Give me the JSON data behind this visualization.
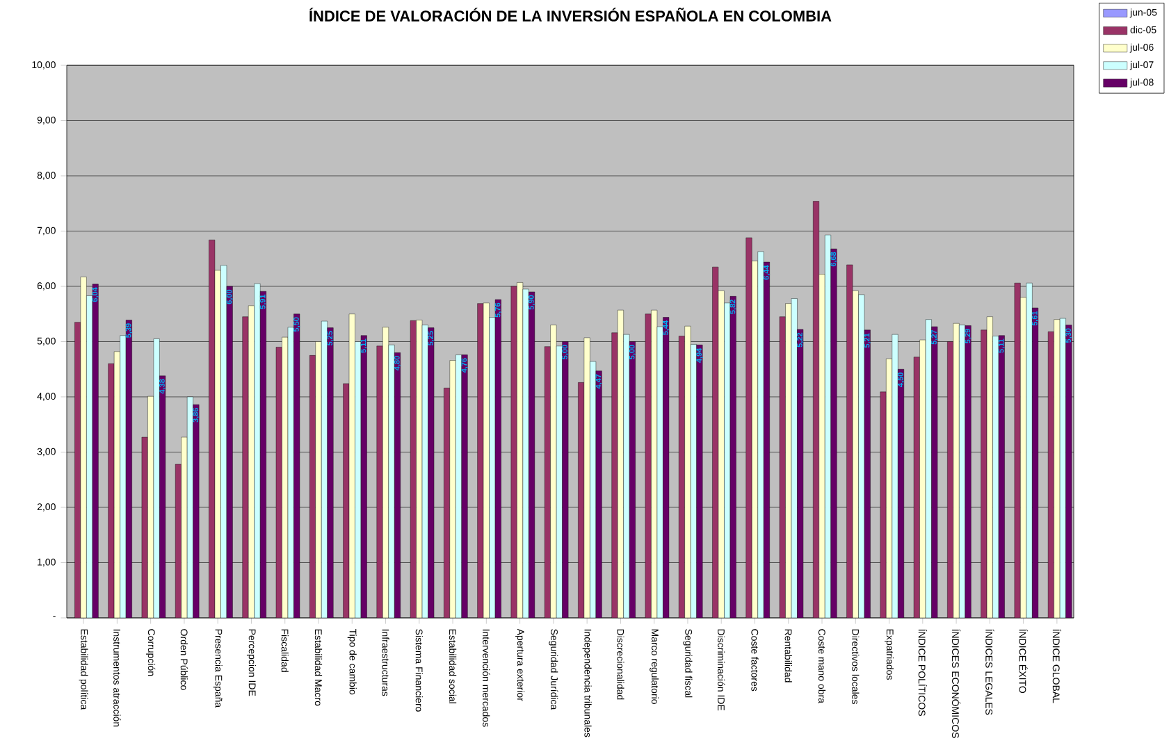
{
  "chart_data": {
    "type": "bar",
    "title": "ÍNDICE DE VALORACIÓN DE LA INVERSIÓN ESPAÑOLA EN COLOMBIA",
    "categories": [
      "Estabilidad política",
      "Instrumentos atracción",
      "Corrupción",
      "Orden Público",
      "Presencia España",
      "Percepcion IDE",
      "Fiscalidad",
      "Estabilidad Macro",
      "Tipo de cambio",
      "Infraestructuras",
      "Sistema Financiero",
      "Estabilidad social",
      "Intervención mercados",
      "Apertura exterior",
      "Seguridad Jurídica",
      "Independencia tribunales",
      "Discrecionalidad",
      "Marco regulatorio",
      "Seguridad fiscal",
      "Discriminación IDE",
      "Coste factores",
      "Rentabilidad",
      "Coste mano obra",
      "Directivos locales",
      "Expatriados",
      "ÍNDICE POLÍTICOS",
      "ÍNDICES ECONÓMICOS",
      "ÍNDICES LEGALES",
      "ÍNDICE ÉXITO",
      "ÍNDICE GLOBAL"
    ],
    "series": [
      {
        "name": "jun-05",
        "color": "#9999ff",
        "values": [
          null,
          null,
          null,
          null,
          null,
          null,
          null,
          null,
          null,
          null,
          null,
          null,
          null,
          null,
          null,
          null,
          null,
          null,
          null,
          null,
          null,
          null,
          null,
          null,
          null,
          null,
          null,
          null,
          null,
          null
        ]
      },
      {
        "name": "dic-05",
        "color": "#993366",
        "values": [
          5.35,
          4.6,
          3.27,
          2.78,
          6.84,
          5.45,
          4.9,
          4.75,
          4.24,
          4.92,
          5.38,
          4.16,
          5.69,
          6.0,
          4.91,
          4.26,
          5.16,
          5.5,
          5.1,
          6.35,
          6.88,
          5.45,
          7.54,
          6.39,
          4.09,
          4.72,
          5.0,
          5.21,
          6.06,
          5.18
        ]
      },
      {
        "name": "jul-06",
        "color": "#ffffcc",
        "values": [
          6.17,
          4.82,
          4.01,
          3.27,
          6.29,
          5.65,
          5.08,
          5.0,
          5.5,
          5.26,
          5.39,
          4.66,
          5.7,
          6.07,
          5.3,
          5.07,
          5.57,
          5.57,
          5.28,
          5.92,
          6.46,
          5.69,
          6.22,
          5.92,
          4.69,
          5.03,
          5.33,
          5.45,
          5.8,
          5.4
        ]
      },
      {
        "name": "jul-07",
        "color": "#ccffff",
        "values": [
          5.83,
          5.11,
          5.05,
          4.0,
          6.38,
          6.05,
          5.26,
          5.37,
          5.0,
          4.94,
          5.3,
          4.76,
          5.44,
          5.95,
          4.92,
          4.64,
          5.13,
          5.27,
          4.95,
          5.7,
          6.63,
          5.78,
          6.93,
          5.85,
          5.13,
          5.4,
          5.3,
          5.1,
          6.06,
          5.42
        ]
      },
      {
        "name": "jul-08",
        "color": "#660066",
        "values": [
          6.04,
          5.39,
          4.38,
          3.86,
          6.0,
          5.91,
          5.5,
          5.25,
          5.11,
          4.8,
          5.25,
          4.76,
          5.76,
          5.9,
          5.0,
          4.47,
          5.0,
          5.44,
          4.94,
          5.82,
          6.44,
          5.22,
          6.68,
          5.21,
          4.5,
          5.27,
          5.29,
          5.11,
          5.61,
          5.3
        ],
        "value_labels": [
          "6,04",
          "5,39",
          "4,38",
          "3,86",
          "6,00",
          "5,91",
          "5,50",
          "5,25",
          "5,11",
          "4,80",
          "5,25",
          "4,76",
          "5,76",
          "5,90",
          "5,00",
          "4,47",
          "5,00",
          "5,44",
          "4,94",
          "5,82",
          "6,44",
          "5,22",
          "6,68",
          "5,21",
          "4,50",
          "5,27",
          "5,29",
          "5,11",
          "5,61",
          "5,30"
        ]
      }
    ],
    "ylim": [
      0,
      10
    ],
    "yticks": [
      {
        "value": 0,
        "label": "-"
      },
      {
        "value": 1,
        "label": "1,00"
      },
      {
        "value": 2,
        "label": "2,00"
      },
      {
        "value": 3,
        "label": "3,00"
      },
      {
        "value": 4,
        "label": "4,00"
      },
      {
        "value": 5,
        "label": "5,00"
      },
      {
        "value": 6,
        "label": "6,00"
      },
      {
        "value": 7,
        "label": "7,00"
      },
      {
        "value": 8,
        "label": "8,00"
      },
      {
        "value": 9,
        "label": "9,00"
      },
      {
        "value": 10,
        "label": "10,00"
      }
    ],
    "grid": "y",
    "legend": "top right"
  }
}
